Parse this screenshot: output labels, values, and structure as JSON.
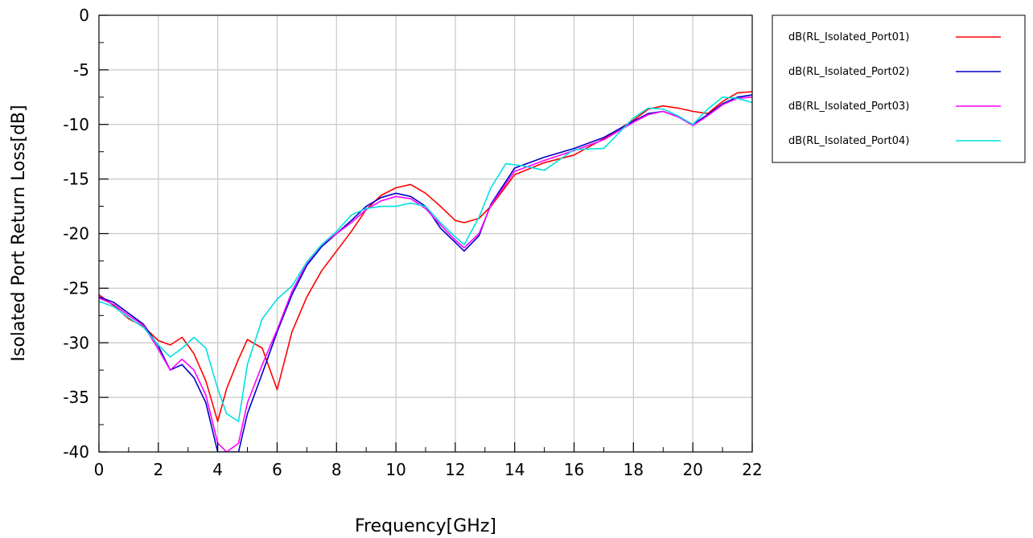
{
  "chart_data": {
    "type": "line",
    "xlabel": "Frequency[GHz]",
    "ylabel": "Isolated Port Return Loss[dB]",
    "xlim": [
      0,
      22
    ],
    "ylim": [
      -40,
      0
    ],
    "xticks": [
      0,
      2,
      4,
      6,
      8,
      10,
      12,
      14,
      16,
      18,
      20,
      22
    ],
    "yticks": [
      0,
      -5,
      -10,
      -15,
      -20,
      -25,
      -30,
      -35,
      -40
    ],
    "grid": true,
    "legend_position": "right",
    "series": [
      {
        "name": "dB(RL_Isolated_Port01)",
        "color": "#ff0000",
        "x": [
          0,
          0.5,
          1,
          1.5,
          2,
          2.4,
          2.8,
          3.2,
          3.6,
          4.0,
          4.3,
          4.7,
          5.0,
          5.5,
          6.0,
          6.5,
          7.0,
          7.5,
          8.0,
          8.5,
          9.0,
          9.5,
          10.0,
          10.5,
          11.0,
          11.5,
          12.0,
          12.3,
          12.8,
          13.2,
          14.0,
          15.0,
          16.0,
          17.0,
          18.0,
          18.5,
          19.0,
          19.5,
          20.0,
          20.5,
          21.0,
          21.5,
          22.0
        ],
        "y": [
          -25.6,
          -26.6,
          -27.8,
          -28.5,
          -29.8,
          -30.2,
          -29.5,
          -31.0,
          -33.5,
          -37.2,
          -34.2,
          -31.5,
          -29.7,
          -30.5,
          -34.3,
          -29.0,
          -25.8,
          -23.4,
          -21.6,
          -19.8,
          -17.8,
          -16.5,
          -15.8,
          -15.5,
          -16.3,
          -17.5,
          -18.8,
          -19.0,
          -18.6,
          -17.5,
          -14.6,
          -13.5,
          -12.8,
          -11.3,
          -9.6,
          -8.6,
          -8.3,
          -8.5,
          -8.8,
          -9.0,
          -7.9,
          -7.1,
          -7.0
        ]
      },
      {
        "name": "dB(RL_Isolated_Port02)",
        "color": "#0000c8",
        "x": [
          0,
          0.5,
          1,
          1.5,
          2,
          2.4,
          2.8,
          3.2,
          3.6,
          4.0,
          4.3,
          4.7,
          5.0,
          5.5,
          6.0,
          6.5,
          7.0,
          7.5,
          8.0,
          8.5,
          9.0,
          9.5,
          10.0,
          10.5,
          11.0,
          11.5,
          12.0,
          12.3,
          12.8,
          13.2,
          14.0,
          15.0,
          16.0,
          17.0,
          18.0,
          18.5,
          19.0,
          19.5,
          20.0,
          20.5,
          21.0,
          21.5,
          22.0
        ],
        "y": [
          -25.8,
          -26.3,
          -27.3,
          -28.3,
          -30.3,
          -32.5,
          -32.0,
          -33.2,
          -35.5,
          -40.0,
          -40.0,
          -40.0,
          -36.5,
          -32.8,
          -29.0,
          -25.6,
          -22.9,
          -21.2,
          -20.0,
          -18.8,
          -17.5,
          -16.7,
          -16.3,
          -16.6,
          -17.5,
          -19.5,
          -20.8,
          -21.6,
          -20.2,
          -17.3,
          -14.0,
          -13.0,
          -12.2,
          -11.2,
          -9.7,
          -9.0,
          -8.8,
          -9.3,
          -10.0,
          -9.1,
          -8.1,
          -7.5,
          -7.3
        ]
      },
      {
        "name": "dB(RL_Isolated_Port03)",
        "color": "#ff00ff",
        "x": [
          0,
          0.5,
          1,
          1.5,
          2,
          2.4,
          2.8,
          3.2,
          3.6,
          4.0,
          4.3,
          4.7,
          5.0,
          5.5,
          6.0,
          6.5,
          7.0,
          7.5,
          8.0,
          8.5,
          9.0,
          9.5,
          10.0,
          10.5,
          11.0,
          11.5,
          12.0,
          12.3,
          12.8,
          13.2,
          14.0,
          15.0,
          16.0,
          17.0,
          18.0,
          18.5,
          19.0,
          19.5,
          20.0,
          20.5,
          21.0,
          21.5,
          22.0
        ],
        "y": [
          -25.9,
          -26.5,
          -27.5,
          -28.4,
          -30.6,
          -32.5,
          -31.5,
          -32.5,
          -34.8,
          -39.2,
          -40.0,
          -39.2,
          -35.5,
          -32.0,
          -28.8,
          -25.3,
          -22.7,
          -21.0,
          -20.0,
          -19.0,
          -17.8,
          -17.0,
          -16.6,
          -16.8,
          -17.7,
          -19.2,
          -20.6,
          -21.3,
          -20.0,
          -17.4,
          -14.3,
          -13.3,
          -12.4,
          -11.4,
          -9.8,
          -9.1,
          -8.8,
          -9.3,
          -10.1,
          -9.2,
          -8.2,
          -7.6,
          -7.5
        ]
      },
      {
        "name": "dB(RL_Isolated_Port04)",
        "color": "#00e0e0",
        "x": [
          0,
          0.5,
          1,
          1.5,
          2,
          2.4,
          2.8,
          3.2,
          3.6,
          4.0,
          4.3,
          4.7,
          5.0,
          5.5,
          6.0,
          6.5,
          7.0,
          7.5,
          8.0,
          8.5,
          9.0,
          9.5,
          10.0,
          10.5,
          11.0,
          11.5,
          12.0,
          12.3,
          12.8,
          13.2,
          13.7,
          14.3,
          15.0,
          16.0,
          17.0,
          18.0,
          18.5,
          19.0,
          19.5,
          20.0,
          20.5,
          21.0,
          21.5,
          22.0
        ],
        "y": [
          -26.2,
          -26.7,
          -27.7,
          -28.6,
          -30.2,
          -31.3,
          -30.5,
          -29.5,
          -30.5,
          -34.2,
          -36.5,
          -37.2,
          -32.0,
          -27.8,
          -26.0,
          -24.8,
          -22.6,
          -21.0,
          -19.8,
          -18.3,
          -17.7,
          -17.5,
          -17.5,
          -17.2,
          -17.5,
          -19.0,
          -20.3,
          -21.0,
          -18.5,
          -15.8,
          -13.6,
          -13.8,
          -14.2,
          -12.3,
          -12.2,
          -9.4,
          -8.5,
          -8.6,
          -9.2,
          -10.0,
          -8.6,
          -7.5,
          -7.6,
          -8.0
        ]
      }
    ]
  }
}
